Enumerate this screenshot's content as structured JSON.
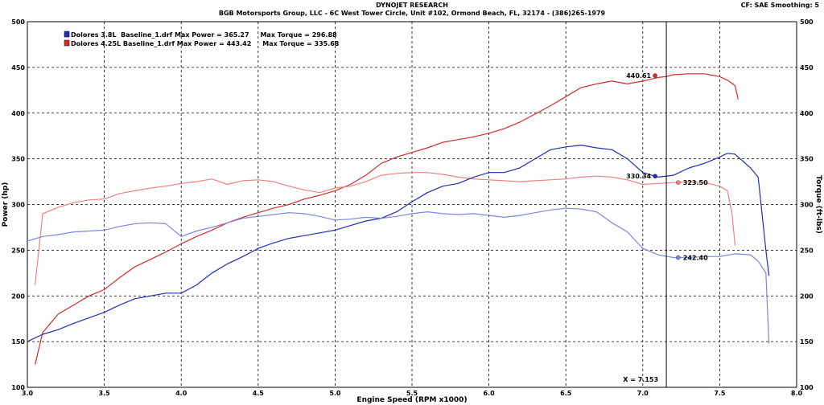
{
  "header": {
    "title": "DYNOJET RESEARCH",
    "subtitle": "BGB Motorsports Group, LLC - 6C West Tower Circle, Unit #102, Ormond Beach, FL, 32174 - (386)265-1979",
    "cf_info": "CF: SAE  Smoothing: 5"
  },
  "chart_data": {
    "type": "line",
    "xlabel": "Engine Speed (RPM x1000)",
    "ylabel_left": "Power (hp)",
    "ylabel_right": "Torque (ft-lbs)",
    "xlim": [
      3.0,
      8.0
    ],
    "ylim": [
      100,
      500
    ],
    "x_ticks": [
      "3.0",
      "3.5",
      "4.0",
      "4.5",
      "5.0",
      "5.5",
      "6.0",
      "6.5",
      "7.0",
      "7.5",
      "8.0"
    ],
    "y_ticks": [
      "100",
      "150",
      "200",
      "250",
      "300",
      "350",
      "400",
      "450",
      "500"
    ],
    "grid": true,
    "legend_position": "top-left",
    "legend": [
      {
        "text": "Dolores 3.8L  Baseline_1.drf Max Power = 365.27     Max Torque = 296.88",
        "color": "#1f2fb0"
      },
      {
        "text": "Dolores 4.25L Baseline_1.drf Max Power = 443.42     Max Torque = 335.68",
        "color": "#d42a2a"
      }
    ],
    "cursor": {
      "x": 7.153,
      "label": "X = 7.153"
    },
    "annotations": [
      {
        "text": "440.61",
        "x": 7.08,
        "y": 441,
        "color": "#d42a2a",
        "side": "left"
      },
      {
        "text": "330.34",
        "x": 7.08,
        "y": 331,
        "color": "#1f2fb0",
        "side": "left"
      },
      {
        "text": "323.50",
        "x": 7.23,
        "y": 324,
        "color": "#f08080",
        "side": "right"
      },
      {
        "text": "242.40",
        "x": 7.23,
        "y": 242,
        "color": "#7b86e0",
        "side": "right"
      }
    ],
    "series": [
      {
        "name": "Dolores 4.25L Baseline_1.drf Power",
        "color": "#d42a2a",
        "x": [
          3.05,
          3.1,
          3.2,
          3.3,
          3.4,
          3.5,
          3.6,
          3.7,
          3.8,
          3.9,
          4.0,
          4.1,
          4.2,
          4.3,
          4.4,
          4.5,
          4.6,
          4.7,
          4.8,
          4.9,
          5.0,
          5.1,
          5.2,
          5.3,
          5.4,
          5.5,
          5.6,
          5.7,
          5.8,
          5.9,
          6.0,
          6.1,
          6.2,
          6.3,
          6.4,
          6.5,
          6.6,
          6.7,
          6.8,
          6.9,
          7.0,
          7.1,
          7.15,
          7.2,
          7.3,
          7.4,
          7.5,
          7.55,
          7.6,
          7.62
        ],
        "y": [
          125,
          160,
          180,
          190,
          200,
          207,
          220,
          232,
          240,
          248,
          257,
          265,
          272,
          280,
          286,
          291,
          296,
          300,
          306,
          310,
          315,
          322,
          332,
          345,
          352,
          357,
          362,
          368,
          371,
          374,
          378,
          383,
          390,
          399,
          408,
          418,
          428,
          432,
          435,
          432,
          435,
          439,
          440,
          442,
          443,
          443,
          440,
          436,
          430,
          415
        ]
      },
      {
        "name": "Dolores 4.25L Baseline_1.drf Torque",
        "color": "#f08080",
        "x": [
          3.05,
          3.1,
          3.2,
          3.3,
          3.4,
          3.5,
          3.6,
          3.7,
          3.8,
          3.9,
          4.0,
          4.1,
          4.2,
          4.3,
          4.4,
          4.5,
          4.6,
          4.7,
          4.8,
          4.9,
          5.0,
          5.1,
          5.2,
          5.3,
          5.4,
          5.5,
          5.6,
          5.7,
          5.8,
          5.9,
          6.0,
          6.1,
          6.2,
          6.3,
          6.4,
          6.5,
          6.6,
          6.7,
          6.8,
          6.9,
          7.0,
          7.1,
          7.2,
          7.3,
          7.4,
          7.5,
          7.55,
          7.58,
          7.6
        ],
        "y": [
          212,
          290,
          297,
          302,
          305,
          306,
          312,
          315,
          318,
          320,
          323,
          325,
          328,
          322,
          326,
          327,
          325,
          320,
          316,
          313,
          318,
          320,
          325,
          332,
          334,
          335,
          335,
          333,
          330,
          328,
          327,
          326,
          325,
          326,
          327,
          328,
          330,
          331,
          330,
          327,
          322,
          323,
          324,
          325,
          324,
          320,
          315,
          290,
          255
        ]
      },
      {
        "name": "Dolores 3.8L Baseline_1.drf Power",
        "color": "#1f2fb0",
        "x": [
          3.0,
          3.1,
          3.2,
          3.3,
          3.4,
          3.5,
          3.6,
          3.7,
          3.8,
          3.9,
          4.0,
          4.1,
          4.2,
          4.3,
          4.4,
          4.5,
          4.6,
          4.7,
          4.8,
          4.9,
          5.0,
          5.1,
          5.2,
          5.3,
          5.4,
          5.5,
          5.6,
          5.7,
          5.8,
          5.9,
          6.0,
          6.1,
          6.2,
          6.3,
          6.4,
          6.5,
          6.6,
          6.7,
          6.8,
          6.9,
          7.0,
          7.1,
          7.2,
          7.3,
          7.4,
          7.5,
          7.55,
          7.6,
          7.7,
          7.75,
          7.8,
          7.82
        ],
        "y": [
          150,
          158,
          163,
          170,
          176,
          182,
          190,
          197,
          200,
          203,
          203,
          212,
          225,
          235,
          243,
          252,
          258,
          263,
          266,
          269,
          272,
          277,
          282,
          285,
          292,
          303,
          313,
          320,
          323,
          330,
          335,
          335,
          340,
          350,
          360,
          363,
          365,
          362,
          360,
          350,
          335,
          330,
          332,
          340,
          345,
          352,
          356,
          355,
          340,
          330,
          250,
          222
        ]
      },
      {
        "name": "Dolores 3.8L Baseline_1.drf Torque",
        "color": "#7b86e0",
        "x": [
          3.0,
          3.1,
          3.2,
          3.3,
          3.4,
          3.5,
          3.6,
          3.7,
          3.8,
          3.9,
          4.0,
          4.1,
          4.2,
          4.3,
          4.4,
          4.5,
          4.6,
          4.7,
          4.8,
          4.9,
          5.0,
          5.1,
          5.2,
          5.3,
          5.4,
          5.5,
          5.6,
          5.7,
          5.8,
          5.9,
          6.0,
          6.1,
          6.2,
          6.3,
          6.4,
          6.5,
          6.6,
          6.7,
          6.8,
          6.9,
          7.0,
          7.1,
          7.2,
          7.3,
          7.4,
          7.5,
          7.6,
          7.7,
          7.75,
          7.8,
          7.82
        ],
        "y": [
          260,
          265,
          267,
          270,
          271,
          272,
          276,
          279,
          280,
          279,
          265,
          271,
          275,
          280,
          285,
          287,
          289,
          291,
          290,
          287,
          283,
          284,
          286,
          285,
          287,
          290,
          292,
          290,
          289,
          290,
          288,
          286,
          288,
          291,
          294,
          296,
          295,
          292,
          280,
          270,
          252,
          245,
          242,
          242,
          243,
          243,
          246,
          245,
          238,
          225,
          148
        ]
      }
    ]
  }
}
